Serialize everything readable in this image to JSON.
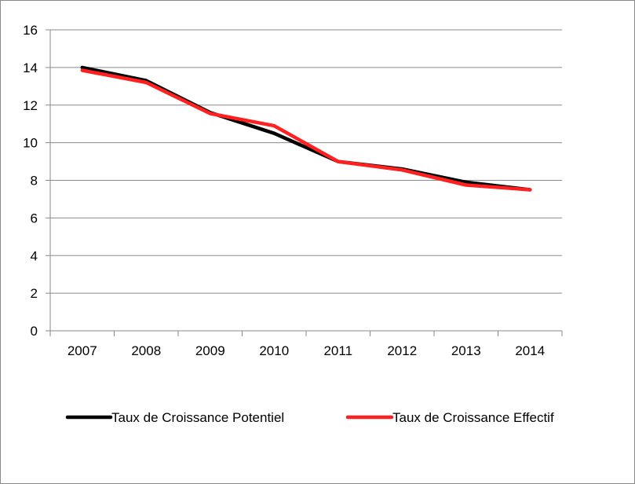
{
  "chart_data": {
    "type": "line",
    "categories": [
      "2007",
      "2008",
      "2009",
      "2010",
      "2011",
      "2012",
      "2013",
      "2014"
    ],
    "series": [
      {
        "name": "Taux de Croissance Potentiel",
        "color": "#000000",
        "values": [
          14.0,
          13.3,
          11.6,
          10.5,
          9.0,
          8.6,
          7.9,
          7.5
        ]
      },
      {
        "name": "Taux de Croissance Effectif",
        "color": "#ff2020",
        "values": [
          13.85,
          13.2,
          11.55,
          10.9,
          9.0,
          8.55,
          7.75,
          7.5
        ]
      }
    ],
    "ylim": [
      0,
      16
    ],
    "yticks": [
      0,
      2,
      4,
      6,
      8,
      10,
      12,
      14,
      16
    ],
    "grid": true,
    "legend_position": "bottom"
  }
}
